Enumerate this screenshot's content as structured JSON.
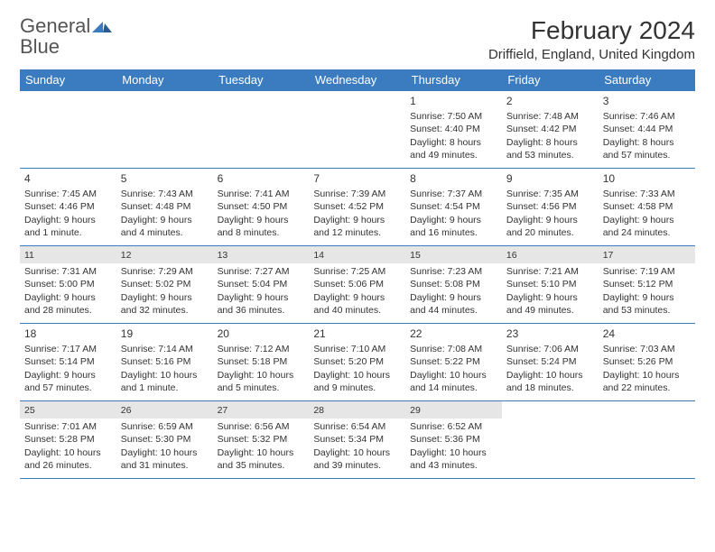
{
  "brand": {
    "name_gray": "General",
    "name_blue": "Blue"
  },
  "title": "February 2024",
  "location": "Driffield, England, United Kingdom",
  "colors": {
    "header_bg": "#3b7bbf",
    "header_text": "#ffffff",
    "border": "#3b7bbf",
    "shade": "#e6e6e6",
    "text": "#333333"
  },
  "day_headers": [
    "Sunday",
    "Monday",
    "Tuesday",
    "Wednesday",
    "Thursday",
    "Friday",
    "Saturday"
  ],
  "weeks": [
    [
      {
        "n": "",
        "sr": "",
        "ss": "",
        "dl": ""
      },
      {
        "n": "",
        "sr": "",
        "ss": "",
        "dl": ""
      },
      {
        "n": "",
        "sr": "",
        "ss": "",
        "dl": ""
      },
      {
        "n": "",
        "sr": "",
        "ss": "",
        "dl": ""
      },
      {
        "n": "1",
        "sr": "Sunrise: 7:50 AM",
        "ss": "Sunset: 4:40 PM",
        "dl": "Daylight: 8 hours and 49 minutes."
      },
      {
        "n": "2",
        "sr": "Sunrise: 7:48 AM",
        "ss": "Sunset: 4:42 PM",
        "dl": "Daylight: 8 hours and 53 minutes."
      },
      {
        "n": "3",
        "sr": "Sunrise: 7:46 AM",
        "ss": "Sunset: 4:44 PM",
        "dl": "Daylight: 8 hours and 57 minutes."
      }
    ],
    [
      {
        "n": "4",
        "sr": "Sunrise: 7:45 AM",
        "ss": "Sunset: 4:46 PM",
        "dl": "Daylight: 9 hours and 1 minute."
      },
      {
        "n": "5",
        "sr": "Sunrise: 7:43 AM",
        "ss": "Sunset: 4:48 PM",
        "dl": "Daylight: 9 hours and 4 minutes."
      },
      {
        "n": "6",
        "sr": "Sunrise: 7:41 AM",
        "ss": "Sunset: 4:50 PM",
        "dl": "Daylight: 9 hours and 8 minutes."
      },
      {
        "n": "7",
        "sr": "Sunrise: 7:39 AM",
        "ss": "Sunset: 4:52 PM",
        "dl": "Daylight: 9 hours and 12 minutes."
      },
      {
        "n": "8",
        "sr": "Sunrise: 7:37 AM",
        "ss": "Sunset: 4:54 PM",
        "dl": "Daylight: 9 hours and 16 minutes."
      },
      {
        "n": "9",
        "sr": "Sunrise: 7:35 AM",
        "ss": "Sunset: 4:56 PM",
        "dl": "Daylight: 9 hours and 20 minutes."
      },
      {
        "n": "10",
        "sr": "Sunrise: 7:33 AM",
        "ss": "Sunset: 4:58 PM",
        "dl": "Daylight: 9 hours and 24 minutes."
      }
    ],
    [
      {
        "n": "11",
        "sr": "Sunrise: 7:31 AM",
        "ss": "Sunset: 5:00 PM",
        "dl": "Daylight: 9 hours and 28 minutes."
      },
      {
        "n": "12",
        "sr": "Sunrise: 7:29 AM",
        "ss": "Sunset: 5:02 PM",
        "dl": "Daylight: 9 hours and 32 minutes."
      },
      {
        "n": "13",
        "sr": "Sunrise: 7:27 AM",
        "ss": "Sunset: 5:04 PM",
        "dl": "Daylight: 9 hours and 36 minutes."
      },
      {
        "n": "14",
        "sr": "Sunrise: 7:25 AM",
        "ss": "Sunset: 5:06 PM",
        "dl": "Daylight: 9 hours and 40 minutes."
      },
      {
        "n": "15",
        "sr": "Sunrise: 7:23 AM",
        "ss": "Sunset: 5:08 PM",
        "dl": "Daylight: 9 hours and 44 minutes."
      },
      {
        "n": "16",
        "sr": "Sunrise: 7:21 AM",
        "ss": "Sunset: 5:10 PM",
        "dl": "Daylight: 9 hours and 49 minutes."
      },
      {
        "n": "17",
        "sr": "Sunrise: 7:19 AM",
        "ss": "Sunset: 5:12 PM",
        "dl": "Daylight: 9 hours and 53 minutes."
      }
    ],
    [
      {
        "n": "18",
        "sr": "Sunrise: 7:17 AM",
        "ss": "Sunset: 5:14 PM",
        "dl": "Daylight: 9 hours and 57 minutes."
      },
      {
        "n": "19",
        "sr": "Sunrise: 7:14 AM",
        "ss": "Sunset: 5:16 PM",
        "dl": "Daylight: 10 hours and 1 minute."
      },
      {
        "n": "20",
        "sr": "Sunrise: 7:12 AM",
        "ss": "Sunset: 5:18 PM",
        "dl": "Daylight: 10 hours and 5 minutes."
      },
      {
        "n": "21",
        "sr": "Sunrise: 7:10 AM",
        "ss": "Sunset: 5:20 PM",
        "dl": "Daylight: 10 hours and 9 minutes."
      },
      {
        "n": "22",
        "sr": "Sunrise: 7:08 AM",
        "ss": "Sunset: 5:22 PM",
        "dl": "Daylight: 10 hours and 14 minutes."
      },
      {
        "n": "23",
        "sr": "Sunrise: 7:06 AM",
        "ss": "Sunset: 5:24 PM",
        "dl": "Daylight: 10 hours and 18 minutes."
      },
      {
        "n": "24",
        "sr": "Sunrise: 7:03 AM",
        "ss": "Sunset: 5:26 PM",
        "dl": "Daylight: 10 hours and 22 minutes."
      }
    ],
    [
      {
        "n": "25",
        "sr": "Sunrise: 7:01 AM",
        "ss": "Sunset: 5:28 PM",
        "dl": "Daylight: 10 hours and 26 minutes."
      },
      {
        "n": "26",
        "sr": "Sunrise: 6:59 AM",
        "ss": "Sunset: 5:30 PM",
        "dl": "Daylight: 10 hours and 31 minutes."
      },
      {
        "n": "27",
        "sr": "Sunrise: 6:56 AM",
        "ss": "Sunset: 5:32 PM",
        "dl": "Daylight: 10 hours and 35 minutes."
      },
      {
        "n": "28",
        "sr": "Sunrise: 6:54 AM",
        "ss": "Sunset: 5:34 PM",
        "dl": "Daylight: 10 hours and 39 minutes."
      },
      {
        "n": "29",
        "sr": "Sunrise: 6:52 AM",
        "ss": "Sunset: 5:36 PM",
        "dl": "Daylight: 10 hours and 43 minutes."
      },
      {
        "n": "",
        "sr": "",
        "ss": "",
        "dl": ""
      },
      {
        "n": "",
        "sr": "",
        "ss": "",
        "dl": ""
      }
    ]
  ],
  "shaded_rows": [
    2,
    4
  ]
}
